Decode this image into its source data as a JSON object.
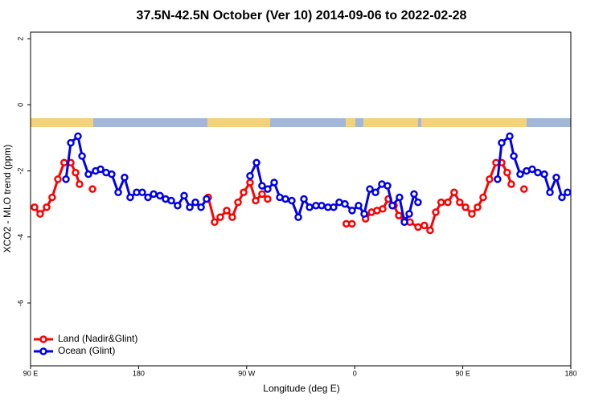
{
  "chart_data": {
    "type": "line",
    "title": "37.5N-42.5N October (Ver 10)   2014-09-06 to 2022-02-28",
    "xlabel": "Longitude (deg E)",
    "ylabel": "XCO2 - MLO trend (ppm)",
    "xlim": [
      90,
      540
    ],
    "ylim": [
      -7.9,
      2.2
    ],
    "xticks": [
      {
        "value": 90,
        "label": "90 E"
      },
      180,
      {
        "value": 270,
        "label": "90 W"
      },
      {
        "value": 360,
        "label": "0"
      },
      {
        "value": 450,
        "label": "90 E"
      },
      {
        "value": 540,
        "label": "180"
      }
    ],
    "yticks": [
      2,
      0,
      -2,
      -4,
      -6
    ],
    "legend": "bottom-left",
    "series": [
      {
        "name": "Land (Nadir&Glint)",
        "color": "#ff0000",
        "x": [
          93.3,
          98,
          103.4,
          108,
          112.8,
          118,
          123.5,
          127.5,
          130.8,
          null,
          141.6,
          null,
          238,
          243.3,
          248,
          253.4,
          258,
          262.8,
          267.5,
          272.8,
          277.5,
          282.8,
          287.5,
          null,
          353,
          357.7,
          null,
          369,
          374,
          378.6,
          383.3,
          388,
          392.7,
          396.7,
          401.4,
          406,
          412.8,
          418,
          422.8,
          427.5,
          432,
          437.5,
          442.8,
          447.5,
          452.3,
          457.6,
          462.3,
          467,
          472.3,
          477.7,
          482.4,
          487,
          490.4,
          null,
          501
        ],
        "values": [
          -3.1,
          -3.3,
          -3.1,
          -2.8,
          -2.25,
          -1.75,
          -1.75,
          -2.05,
          -2.4,
          null,
          -2.55,
          null,
          -2.8,
          -3.55,
          -3.4,
          -3.2,
          -3.4,
          -2.95,
          -2.65,
          -2.35,
          -2.9,
          -2.7,
          -2.85,
          null,
          -3.6,
          -3.6,
          null,
          -3.45,
          -3.25,
          -3.2,
          -3.15,
          -2.85,
          -3.05,
          -3.35,
          -3.5,
          -3.55,
          -3.7,
          -3.65,
          -3.8,
          -3.25,
          -2.95,
          -2.95,
          -2.65,
          -2.95,
          -3.1,
          -3.3,
          -3.1,
          -2.8,
          -2.25,
          -1.75,
          -1.75,
          -2.05,
          -2.4,
          null,
          -2.55
        ]
      },
      {
        "name": "Ocean (Glint)",
        "color": "#0000ee",
        "x": [
          119.5,
          123.5,
          129.5,
          132.9,
          138.2,
          144.2,
          148.3,
          152.9,
          157.6,
          163,
          168.3,
          173,
          178.4,
          183,
          187.8,
          192.5,
          197.8,
          202.5,
          207.2,
          212.5,
          217.9,
          222.6,
          227.3,
          232,
          236.6,
          null,
          272.8,
          278.2,
          282.8,
          287.5,
          292.9,
          297.6,
          302.3,
          307.6,
          313,
          317.7,
          322.4,
          327.7,
          332.4,
          337.7,
          342.4,
          347.1,
          351.8,
          357.8,
          363.2,
          367.9,
          372.6,
          377.3,
          382.6,
          387.3,
          391.3,
          397.3,
          401.4,
          405.4,
          409.4,
          412.7,
          null,
          479,
          482.4,
          489.1,
          492.5,
          497.8,
          503.1,
          507.8,
          512.5,
          517.9,
          522.6,
          527.9,
          532.6,
          537.3
        ],
        "values": [
          -2.25,
          -1.15,
          -0.95,
          -1.55,
          -2.1,
          -2,
          -1.95,
          -2.05,
          -2.1,
          -2.65,
          -2.2,
          -2.8,
          -2.65,
          -2.65,
          -2.8,
          -2.7,
          -2.75,
          -2.85,
          -2.9,
          -3.05,
          -2.75,
          -3.1,
          -2.95,
          -3.1,
          -2.85,
          null,
          -2.15,
          -1.75,
          -2.45,
          -2.55,
          -2.35,
          -2.8,
          -2.85,
          -2.9,
          -3.4,
          -2.85,
          -3.1,
          -3.05,
          -3.05,
          -3.1,
          -3.1,
          -2.95,
          -3.0,
          -3.2,
          -3.05,
          -3.3,
          -2.55,
          -2.65,
          -2.4,
          -2.45,
          -3.05,
          -2.8,
          -3.55,
          -3.3,
          -2.7,
          -2.95,
          null,
          -2.25,
          -1.15,
          -0.95,
          -1.55,
          -2.1,
          -2,
          -1.95,
          -2.05,
          -2.1,
          -2.65,
          -2.2,
          -2.8,
          -2.65
        ]
      }
    ]
  }
}
